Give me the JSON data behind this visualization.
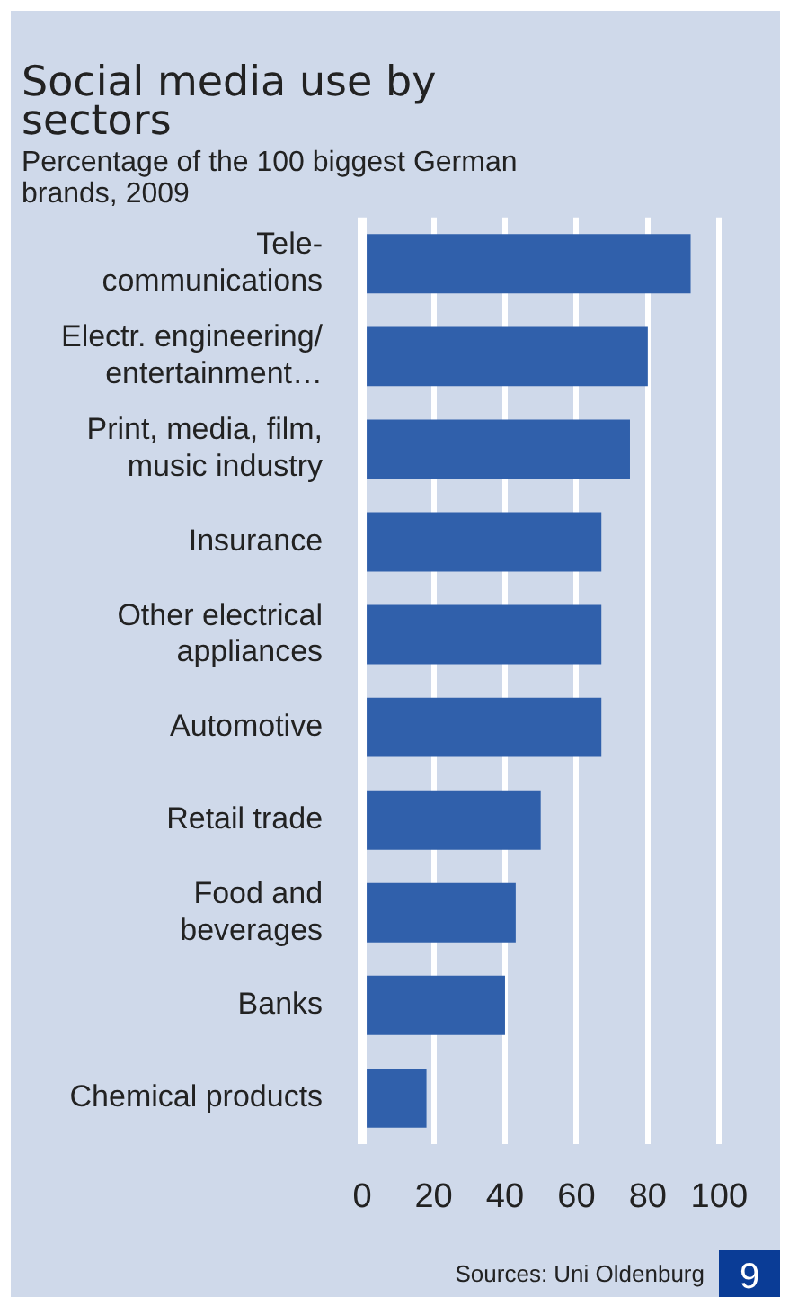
{
  "chart_data": {
    "type": "bar",
    "orientation": "horizontal",
    "title": "Social media use by sectors",
    "subtitle": "Percentage of the 100 biggest German brands, 2009",
    "categories": [
      "Tele-\ncommunications",
      "Electr. engineering/\nentertainment…",
      "Print, media, film,\nmusic industry",
      "Insurance",
      "Other electrical\nappliances",
      "Automotive",
      "Retail trade",
      "Food and\nbeverages",
      "Banks",
      "Chemical products"
    ],
    "values": [
      92,
      80,
      75,
      67,
      67,
      67,
      50,
      43,
      40,
      18
    ],
    "color": "#3060ab",
    "xlim": [
      0,
      100
    ],
    "xticks": [
      0,
      20,
      40,
      60,
      80,
      100
    ],
    "grid": "x",
    "annotations": [
      "Sources: Uni Oldenburg",
      "9"
    ]
  }
}
